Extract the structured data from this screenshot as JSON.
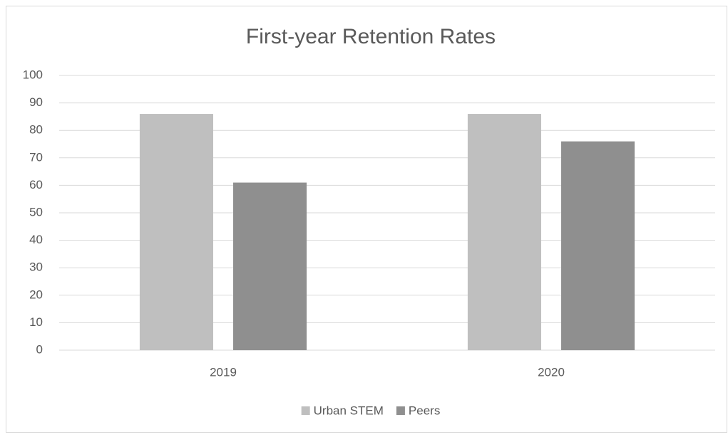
{
  "chart_data": {
    "type": "bar",
    "title": "First-year Retention Rates",
    "categories": [
      "2019",
      "2020"
    ],
    "series": [
      {
        "name": "Urban STEM",
        "color": "#bfbfbf",
        "values": [
          86,
          86
        ]
      },
      {
        "name": "Peers",
        "color": "#8f8f8f",
        "values": [
          61,
          76
        ]
      }
    ],
    "ylim": [
      0,
      100
    ],
    "yticks": [
      0,
      10,
      20,
      30,
      40,
      50,
      60,
      70,
      80,
      90,
      100
    ],
    "grid": true,
    "legend": "bottom"
  }
}
